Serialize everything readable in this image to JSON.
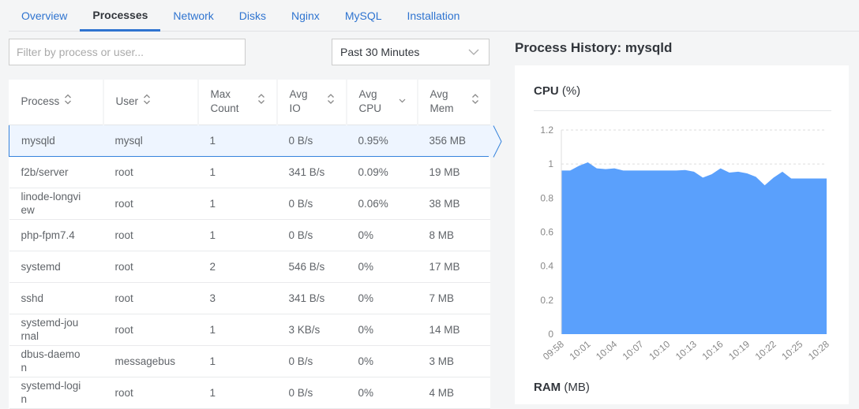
{
  "tabs": [
    "Overview",
    "Processes",
    "Network",
    "Disks",
    "Nginx",
    "MySQL",
    "Installation"
  ],
  "active_tab": "Processes",
  "filter": {
    "placeholder": "Filter by process or user...",
    "value": ""
  },
  "time_select": {
    "value": "Past 30 Minutes"
  },
  "table": {
    "columns": [
      {
        "label": "Process",
        "sort": "both"
      },
      {
        "label": "User",
        "sort": "both"
      },
      {
        "label": "Max Count",
        "sort": "both"
      },
      {
        "label": "Avg IO",
        "sort": "both"
      },
      {
        "label": "Avg CPU",
        "sort": "desc"
      },
      {
        "label": "Avg Mem",
        "sort": "both"
      }
    ],
    "rows": [
      [
        "mysqld",
        "mysql",
        "1",
        "0 B/s",
        "0.95%",
        "356 MB"
      ],
      [
        "f2b/server",
        "root",
        "1",
        "341 B/s",
        "0.09%",
        "19 MB"
      ],
      [
        "linode-longview",
        "root",
        "1",
        "0 B/s",
        "0.06%",
        "38 MB"
      ],
      [
        "php-fpm7.4",
        "root",
        "1",
        "0 B/s",
        "0%",
        "8 MB"
      ],
      [
        "systemd",
        "root",
        "2",
        "546 B/s",
        "0%",
        "17 MB"
      ],
      [
        "sshd",
        "root",
        "3",
        "341 B/s",
        "0%",
        "7 MB"
      ],
      [
        "systemd-journal",
        "root",
        "1",
        "3 KB/s",
        "0%",
        "14 MB"
      ],
      [
        "dbus-daemon",
        "messagebus",
        "1",
        "0 B/s",
        "0%",
        "3 MB"
      ],
      [
        "systemd-login",
        "root",
        "1",
        "0 B/s",
        "0%",
        "4 MB"
      ]
    ],
    "selected_row": 0
  },
  "panel": {
    "title": "Process History: mysqld",
    "cpu_title": "CPU",
    "cpu_unit": "(%)",
    "ram_title": "RAM",
    "ram_unit": "(MB)"
  },
  "chart_data": {
    "type": "area",
    "title": "CPU (%)",
    "color": "#5aa0fc",
    "ylim": [
      0,
      1.2
    ],
    "yticks": [
      0,
      0.2,
      0.4,
      0.6,
      0.8,
      1,
      1.2
    ],
    "xtick_labels": [
      "09:58",
      "10:01",
      "10:04",
      "10:07",
      "10:10",
      "10:13",
      "10:16",
      "10:19",
      "10:22",
      "10:25",
      "10:28"
    ],
    "x": [
      "09:58",
      "09:59",
      "10:00",
      "10:01",
      "10:02",
      "10:03",
      "10:04",
      "10:05",
      "10:06",
      "10:07",
      "10:08",
      "10:09",
      "10:10",
      "10:11",
      "10:12",
      "10:13",
      "10:14",
      "10:15",
      "10:16",
      "10:17",
      "10:18",
      "10:19",
      "10:20",
      "10:21",
      "10:22",
      "10:23",
      "10:24",
      "10:25",
      "10:26",
      "10:27",
      "10:28"
    ],
    "values": [
      0.962,
      0.962,
      0.99,
      1.01,
      0.975,
      0.97,
      0.975,
      0.962,
      0.962,
      0.962,
      0.962,
      0.962,
      0.962,
      0.962,
      0.965,
      0.955,
      0.92,
      0.94,
      0.975,
      0.95,
      0.955,
      0.945,
      0.925,
      0.875,
      0.92,
      0.955,
      0.915,
      0.915,
      0.915,
      0.915,
      0.915
    ],
    "grid": true
  }
}
